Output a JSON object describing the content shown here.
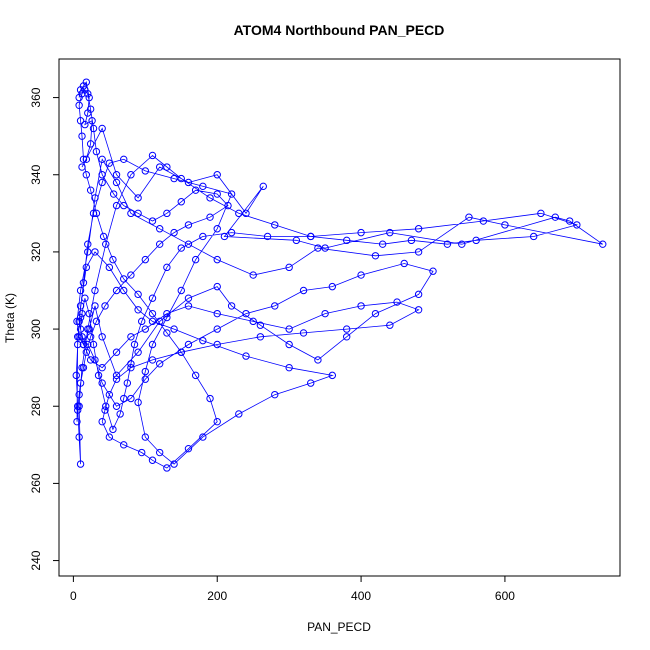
{
  "chart_data": {
    "type": "scatter",
    "title": "ATOM4 Northbound PAN_PECD",
    "xlabel": "PAN_PECD",
    "ylabel": "Theta (K)",
    "xlim": [
      -20,
      760
    ],
    "ylim": [
      236,
      370
    ],
    "xticks": [
      "0",
      "200",
      "400",
      "600"
    ],
    "yticks": [
      "240",
      "260",
      "280",
      "300",
      "320",
      "340",
      "360"
    ],
    "grid": false,
    "legend": "none",
    "colors": {
      "series": "#0000ff",
      "axes": "#000000",
      "background": "#ffffff"
    },
    "marker": "open-circle",
    "connected": true,
    "series": [
      {
        "values": [
          [
            8,
            360
          ],
          [
            10,
            362
          ],
          [
            14,
            363
          ],
          [
            18,
            364
          ],
          [
            22,
            360
          ],
          [
            20,
            356
          ],
          [
            16,
            353
          ],
          [
            26,
            354
          ],
          [
            24,
            348
          ],
          [
            18,
            344
          ],
          [
            12,
            342
          ],
          [
            40,
            352
          ],
          [
            60,
            340
          ],
          [
            90,
            334
          ],
          [
            120,
            342
          ],
          [
            160,
            338
          ],
          [
            200,
            340
          ],
          [
            240,
            330
          ],
          [
            264,
            337
          ],
          [
            210,
            324
          ],
          [
            310,
            323
          ],
          [
            350,
            321
          ],
          [
            440,
            325
          ],
          [
            540,
            322
          ],
          [
            670,
            329
          ],
          [
            690,
            328
          ],
          [
            736,
            322
          ],
          [
            600,
            327
          ],
          [
            550,
            329
          ],
          [
            480,
            320
          ],
          [
            420,
            319
          ],
          [
            340,
            321
          ],
          [
            300,
            316
          ],
          [
            250,
            314
          ],
          [
            200,
            318
          ],
          [
            160,
            322
          ],
          [
            120,
            326
          ],
          [
            80,
            330
          ],
          [
            60,
            338
          ],
          [
            40,
            344
          ],
          [
            30,
            334
          ],
          [
            20,
            320
          ],
          [
            10,
            310
          ],
          [
            5,
            302
          ],
          [
            8,
            298
          ],
          [
            14,
            296
          ],
          [
            22,
            300
          ],
          [
            30,
            306
          ],
          [
            40,
            298
          ],
          [
            60,
            288
          ],
          [
            90,
            294
          ],
          [
            120,
            302
          ],
          [
            160,
            308
          ],
          [
            200,
            311
          ],
          [
            220,
            306
          ],
          [
            260,
            301
          ],
          [
            300,
            296
          ],
          [
            340,
            292
          ],
          [
            380,
            298
          ],
          [
            420,
            304
          ],
          [
            480,
            309
          ],
          [
            500,
            315
          ],
          [
            460,
            317
          ],
          [
            400,
            314
          ],
          [
            360,
            311
          ],
          [
            320,
            310
          ],
          [
            280,
            306
          ],
          [
            240,
            304
          ],
          [
            200,
            300
          ],
          [
            160,
            296
          ],
          [
            120,
            291
          ],
          [
            100,
            287
          ],
          [
            80,
            282
          ],
          [
            60,
            280
          ],
          [
            40,
            286
          ],
          [
            30,
            292
          ],
          [
            20,
            296
          ],
          [
            12,
            298
          ],
          [
            8,
            302
          ],
          [
            14,
            312
          ],
          [
            20,
            322
          ],
          [
            28,
            330
          ],
          [
            40,
            338
          ],
          [
            50,
            343
          ],
          [
            70,
            344
          ],
          [
            100,
            341
          ],
          [
            140,
            339
          ],
          [
            180,
            337
          ],
          [
            220,
            335
          ],
          [
            200,
            326
          ],
          [
            170,
            318
          ],
          [
            150,
            310
          ],
          [
            130,
            303
          ],
          [
            110,
            296
          ],
          [
            100,
            289
          ],
          [
            90,
            281
          ],
          [
            100,
            272
          ],
          [
            120,
            268
          ],
          [
            140,
            265
          ],
          [
            180,
            272
          ],
          [
            230,
            278
          ],
          [
            280,
            283
          ],
          [
            330,
            286
          ],
          [
            360,
            288
          ],
          [
            300,
            290
          ],
          [
            240,
            293
          ],
          [
            180,
            297
          ],
          [
            140,
            300
          ],
          [
            110,
            302
          ],
          [
            90,
            305
          ],
          [
            70,
            310
          ],
          [
            50,
            316
          ],
          [
            30,
            320
          ],
          [
            18,
            316
          ],
          [
            10,
            306
          ],
          [
            6,
            296
          ],
          [
            4,
            288
          ],
          [
            6,
            280
          ],
          [
            8,
            272
          ],
          [
            10,
            265
          ],
          [
            8,
            280
          ],
          [
            12,
            290
          ],
          [
            20,
            300
          ],
          [
            30,
            310
          ],
          [
            45,
            322
          ],
          [
            60,
            332
          ],
          [
            80,
            340
          ],
          [
            110,
            345
          ],
          [
            130,
            342
          ],
          [
            150,
            339
          ],
          [
            190,
            334
          ],
          [
            230,
            330
          ],
          [
            280,
            327
          ],
          [
            330,
            324
          ],
          [
            380,
            323
          ],
          [
            430,
            322
          ],
          [
            470,
            323
          ],
          [
            520,
            322
          ],
          [
            560,
            323
          ],
          [
            640,
            324
          ],
          [
            700,
            327
          ],
          [
            650,
            330
          ],
          [
            570,
            328
          ],
          [
            480,
            326
          ],
          [
            400,
            325
          ],
          [
            330,
            324
          ],
          [
            270,
            324
          ],
          [
            220,
            325
          ],
          [
            180,
            324
          ],
          [
            150,
            321
          ],
          [
            130,
            316
          ],
          [
            110,
            308
          ],
          [
            95,
            302
          ],
          [
            85,
            296
          ],
          [
            80,
            291
          ],
          [
            75,
            286
          ],
          [
            70,
            282
          ],
          [
            65,
            278
          ],
          [
            55,
            274
          ],
          [
            45,
            280
          ],
          [
            35,
            288
          ],
          [
            28,
            296
          ],
          [
            22,
            304
          ],
          [
            16,
            308
          ],
          [
            12,
            304
          ],
          [
            10,
            300
          ],
          [
            14,
            296
          ],
          [
            24,
            292
          ],
          [
            40,
            290
          ],
          [
            60,
            294
          ],
          [
            80,
            298
          ],
          [
            100,
            300
          ],
          [
            130,
            304
          ],
          [
            160,
            306
          ],
          [
            200,
            304
          ],
          [
            250,
            302
          ],
          [
            300,
            300
          ],
          [
            350,
            304
          ],
          [
            400,
            306
          ],
          [
            450,
            307
          ],
          [
            480,
            305
          ],
          [
            440,
            301
          ],
          [
            380,
            300
          ],
          [
            320,
            299
          ],
          [
            260,
            298
          ],
          [
            200,
            296
          ],
          [
            150,
            294
          ],
          [
            110,
            292
          ],
          [
            80,
            290
          ],
          [
            60,
            287
          ],
          [
            50,
            283
          ],
          [
            44,
            279
          ],
          [
            40,
            276
          ],
          [
            50,
            272
          ],
          [
            70,
            270
          ],
          [
            95,
            268
          ],
          [
            110,
            266
          ],
          [
            130,
            264
          ],
          [
            160,
            269
          ],
          [
            200,
            276
          ],
          [
            190,
            282
          ],
          [
            170,
            288
          ],
          [
            150,
            294
          ],
          [
            130,
            299
          ],
          [
            110,
            304
          ],
          [
            90,
            309
          ],
          [
            70,
            313
          ],
          [
            55,
            318
          ],
          [
            42,
            324
          ],
          [
            32,
            330
          ],
          [
            24,
            336
          ],
          [
            18,
            340
          ],
          [
            14,
            344
          ],
          [
            12,
            350
          ],
          [
            10,
            354
          ],
          [
            8,
            358
          ],
          [
            12,
            361
          ],
          [
            16,
            362
          ],
          [
            20,
            361
          ],
          [
            24,
            357
          ],
          [
            28,
            352
          ],
          [
            32,
            346
          ],
          [
            40,
            340
          ],
          [
            56,
            335
          ],
          [
            70,
            332
          ],
          [
            90,
            330
          ],
          [
            110,
            328
          ],
          [
            130,
            330
          ],
          [
            150,
            333
          ],
          [
            170,
            336
          ],
          [
            200,
            335
          ],
          [
            215,
            332
          ],
          [
            190,
            329
          ],
          [
            160,
            327
          ],
          [
            140,
            325
          ],
          [
            120,
            322
          ],
          [
            100,
            318
          ],
          [
            80,
            314
          ],
          [
            60,
            310
          ],
          [
            44,
            306
          ],
          [
            32,
            302
          ],
          [
            24,
            298
          ],
          [
            18,
            294
          ],
          [
            14,
            290
          ],
          [
            10,
            286
          ],
          [
            8,
            283
          ],
          [
            6,
            279
          ],
          [
            5,
            276
          ],
          [
            6,
            298
          ],
          [
            10,
            303
          ]
        ]
      }
    ]
  }
}
